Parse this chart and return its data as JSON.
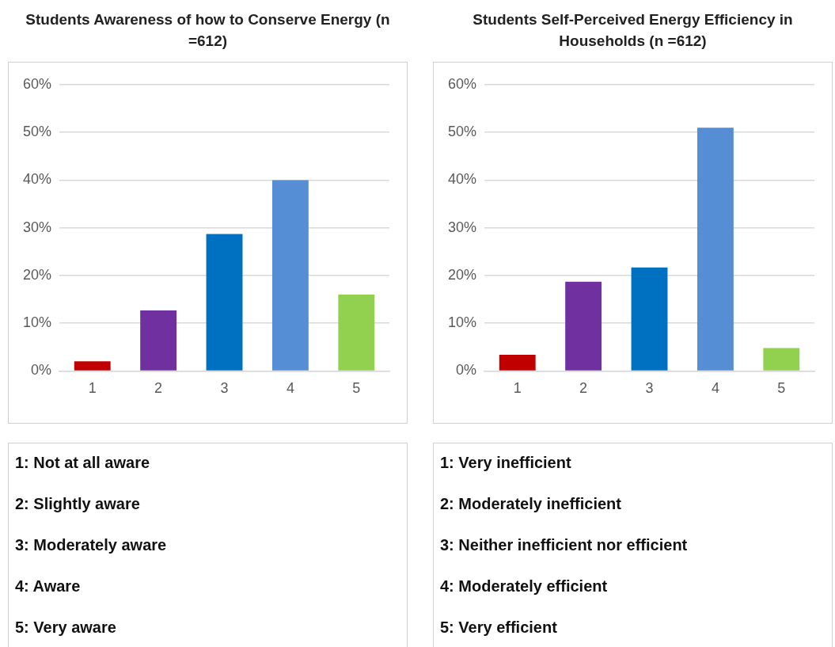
{
  "chart_data": [
    {
      "type": "bar",
      "title": "Students Awareness of how to Conserve Energy (n =612)",
      "categories": [
        "1",
        "2",
        "3",
        "4",
        "5"
      ],
      "values": [
        2.0,
        12.7,
        28.7,
        40.0,
        16.0
      ],
      "colors": [
        "#c00000",
        "#7030a0",
        "#0070c0",
        "#558ed5",
        "#92d050"
      ],
      "ylim": [
        0,
        60
      ],
      "yticks": [
        {
          "value": 0,
          "label": "0%"
        },
        {
          "value": 10,
          "label": "10%"
        },
        {
          "value": 20,
          "label": "20%"
        },
        {
          "value": 30,
          "label": "30%"
        },
        {
          "value": 40,
          "label": "40%"
        },
        {
          "value": 50,
          "label": "50%"
        },
        {
          "value": 60,
          "label": "60%"
        }
      ],
      "grid": "y",
      "legend": false,
      "annotations": [
        "1: Not at all aware",
        "2: Slightly aware",
        "3: Moderately aware",
        "4: Aware",
        "5: Very aware"
      ]
    },
    {
      "type": "bar",
      "title": "Students Self-Perceived Energy Efficiency in Households (n =612)",
      "categories": [
        "1",
        "2",
        "3",
        "4",
        "5"
      ],
      "values": [
        3.4,
        18.7,
        21.7,
        51.0,
        4.8
      ],
      "colors": [
        "#c00000",
        "#7030a0",
        "#0070c0",
        "#558ed5",
        "#92d050"
      ],
      "ylim": [
        0,
        60
      ],
      "yticks": [
        {
          "value": 0,
          "label": "0%"
        },
        {
          "value": 10,
          "label": "10%"
        },
        {
          "value": 20,
          "label": "20%"
        },
        {
          "value": 30,
          "label": "30%"
        },
        {
          "value": 40,
          "label": "40%"
        },
        {
          "value": 50,
          "label": "50%"
        },
        {
          "value": 60,
          "label": "60%"
        }
      ],
      "grid": "y",
      "legend": false,
      "annotations": [
        "1: Very inefficient",
        "2: Moderately inefficient",
        "3: Neither inefficient nor efficient",
        "4: Moderately efficient",
        "5: Very efficient"
      ]
    }
  ]
}
